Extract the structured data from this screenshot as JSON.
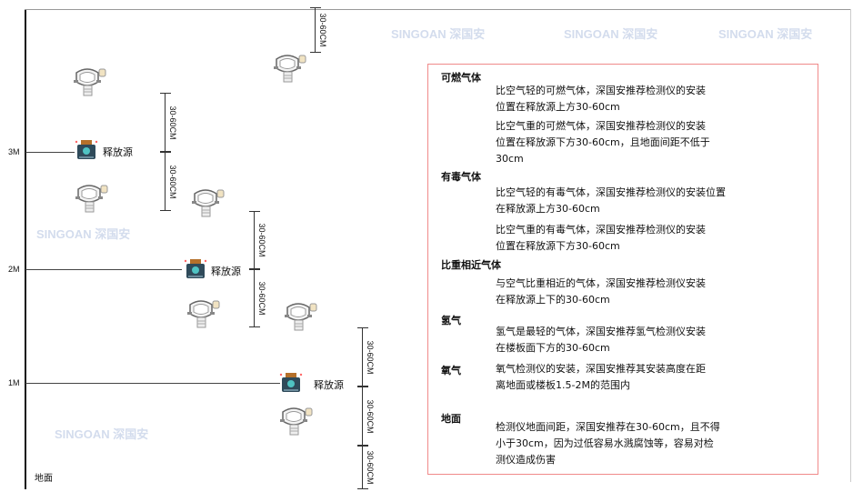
{
  "watermark": "SINGOAN 深国安",
  "levels": [
    "3M",
    "2M",
    "1M"
  ],
  "ground_label": "地面",
  "source_label": "释放源",
  "dimension_label": "30-60CM",
  "colors": {
    "frame": "#444444",
    "box_border": "#f08a8a",
    "source_body": "#2f4a5a",
    "source_face": "#4fc3c3",
    "source_cap": "#b5702a"
  },
  "notes": [
    {
      "heading": "可燃气体",
      "paragraphs": [
        "比空气轻的可燃气体，深国安推荐检测仪的安装\n位置在释放源上方30-60cm",
        "比空气重的可燃气体，深国安推荐检测仪的安装\n位置在释放源下方30-60cm，且地面间距不低于\n30cm"
      ]
    },
    {
      "heading": "有毒气体",
      "paragraphs": [
        "比空气轻的有毒气体，深国安推荐检测仪的安装位置\n在释放源上方30-60cm",
        "比空气重的有毒气体，深国安推荐检测仪的安装\n位置在释放源下方30-60cm"
      ]
    },
    {
      "heading": "比重相近气体",
      "paragraphs": [
        "与空气比重相近的气体，深国安推荐检测仪安装\n在释放源上下的30-60cm"
      ]
    },
    {
      "heading": "氢气",
      "paragraphs": [
        "氢气是最轻的气体，深国安推荐氢气检测仪安装\n在楼板面下方的30-60cm"
      ]
    },
    {
      "heading": "氧气",
      "paragraphs": [
        "氧气检测仪的安装，深国安推荐其安装高度在距\n离地面或楼板1.5-2M的范围内"
      ]
    },
    {
      "heading": "地面",
      "paragraphs": [
        "检测仪地面间距，深国安推荐在30-60cm，且不得\n小于30cm，因为过低容易水溅腐蚀等，容易对检\n测仪造成伤害"
      ]
    }
  ]
}
